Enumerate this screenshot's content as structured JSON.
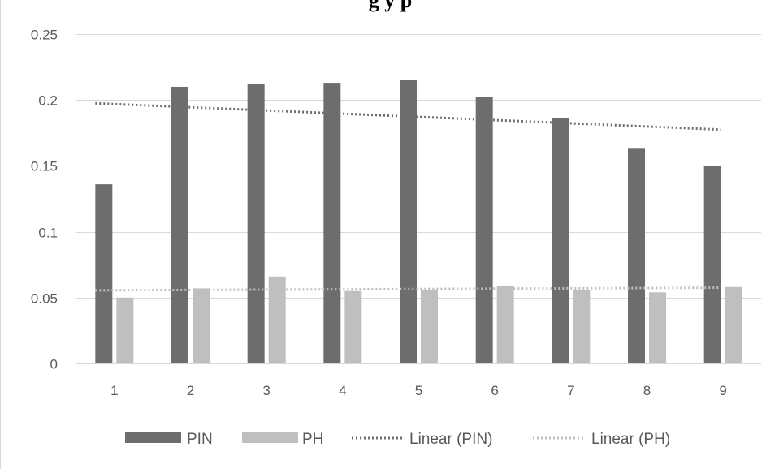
{
  "chart_data": {
    "type": "bar",
    "title": "g                                            y                  p",
    "categories": [
      "1",
      "2",
      "3",
      "4",
      "5",
      "6",
      "7",
      "8",
      "9"
    ],
    "ylim": [
      0,
      0.25
    ],
    "yticks": [
      "0",
      "0.05",
      "0.1",
      "0.15",
      "0.2",
      "0.25"
    ],
    "ytick_values": [
      0,
      0.05,
      0.1,
      0.15,
      0.2,
      0.25
    ],
    "grid": true,
    "legend_position": "bottom",
    "series": [
      {
        "name": "PIN",
        "color": "#6d6d6d",
        "values": [
          0.136,
          0.21,
          0.212,
          0.213,
          0.215,
          0.202,
          0.186,
          0.163,
          0.15
        ]
      },
      {
        "name": "PH",
        "color": "#bfbfbf",
        "values": [
          0.05,
          0.057,
          0.066,
          0.055,
          0.056,
          0.059,
          0.056,
          0.054,
          0.058
        ]
      }
    ],
    "trendlines": [
      {
        "name": "Linear (PIN)",
        "type": "linear",
        "color": "#6d6d6d",
        "start": 0.1975,
        "end": 0.1775
      },
      {
        "name": "Linear (PH)",
        "type": "linear",
        "color": "#bfbfbf",
        "start": 0.0555,
        "end": 0.0575
      }
    ]
  }
}
